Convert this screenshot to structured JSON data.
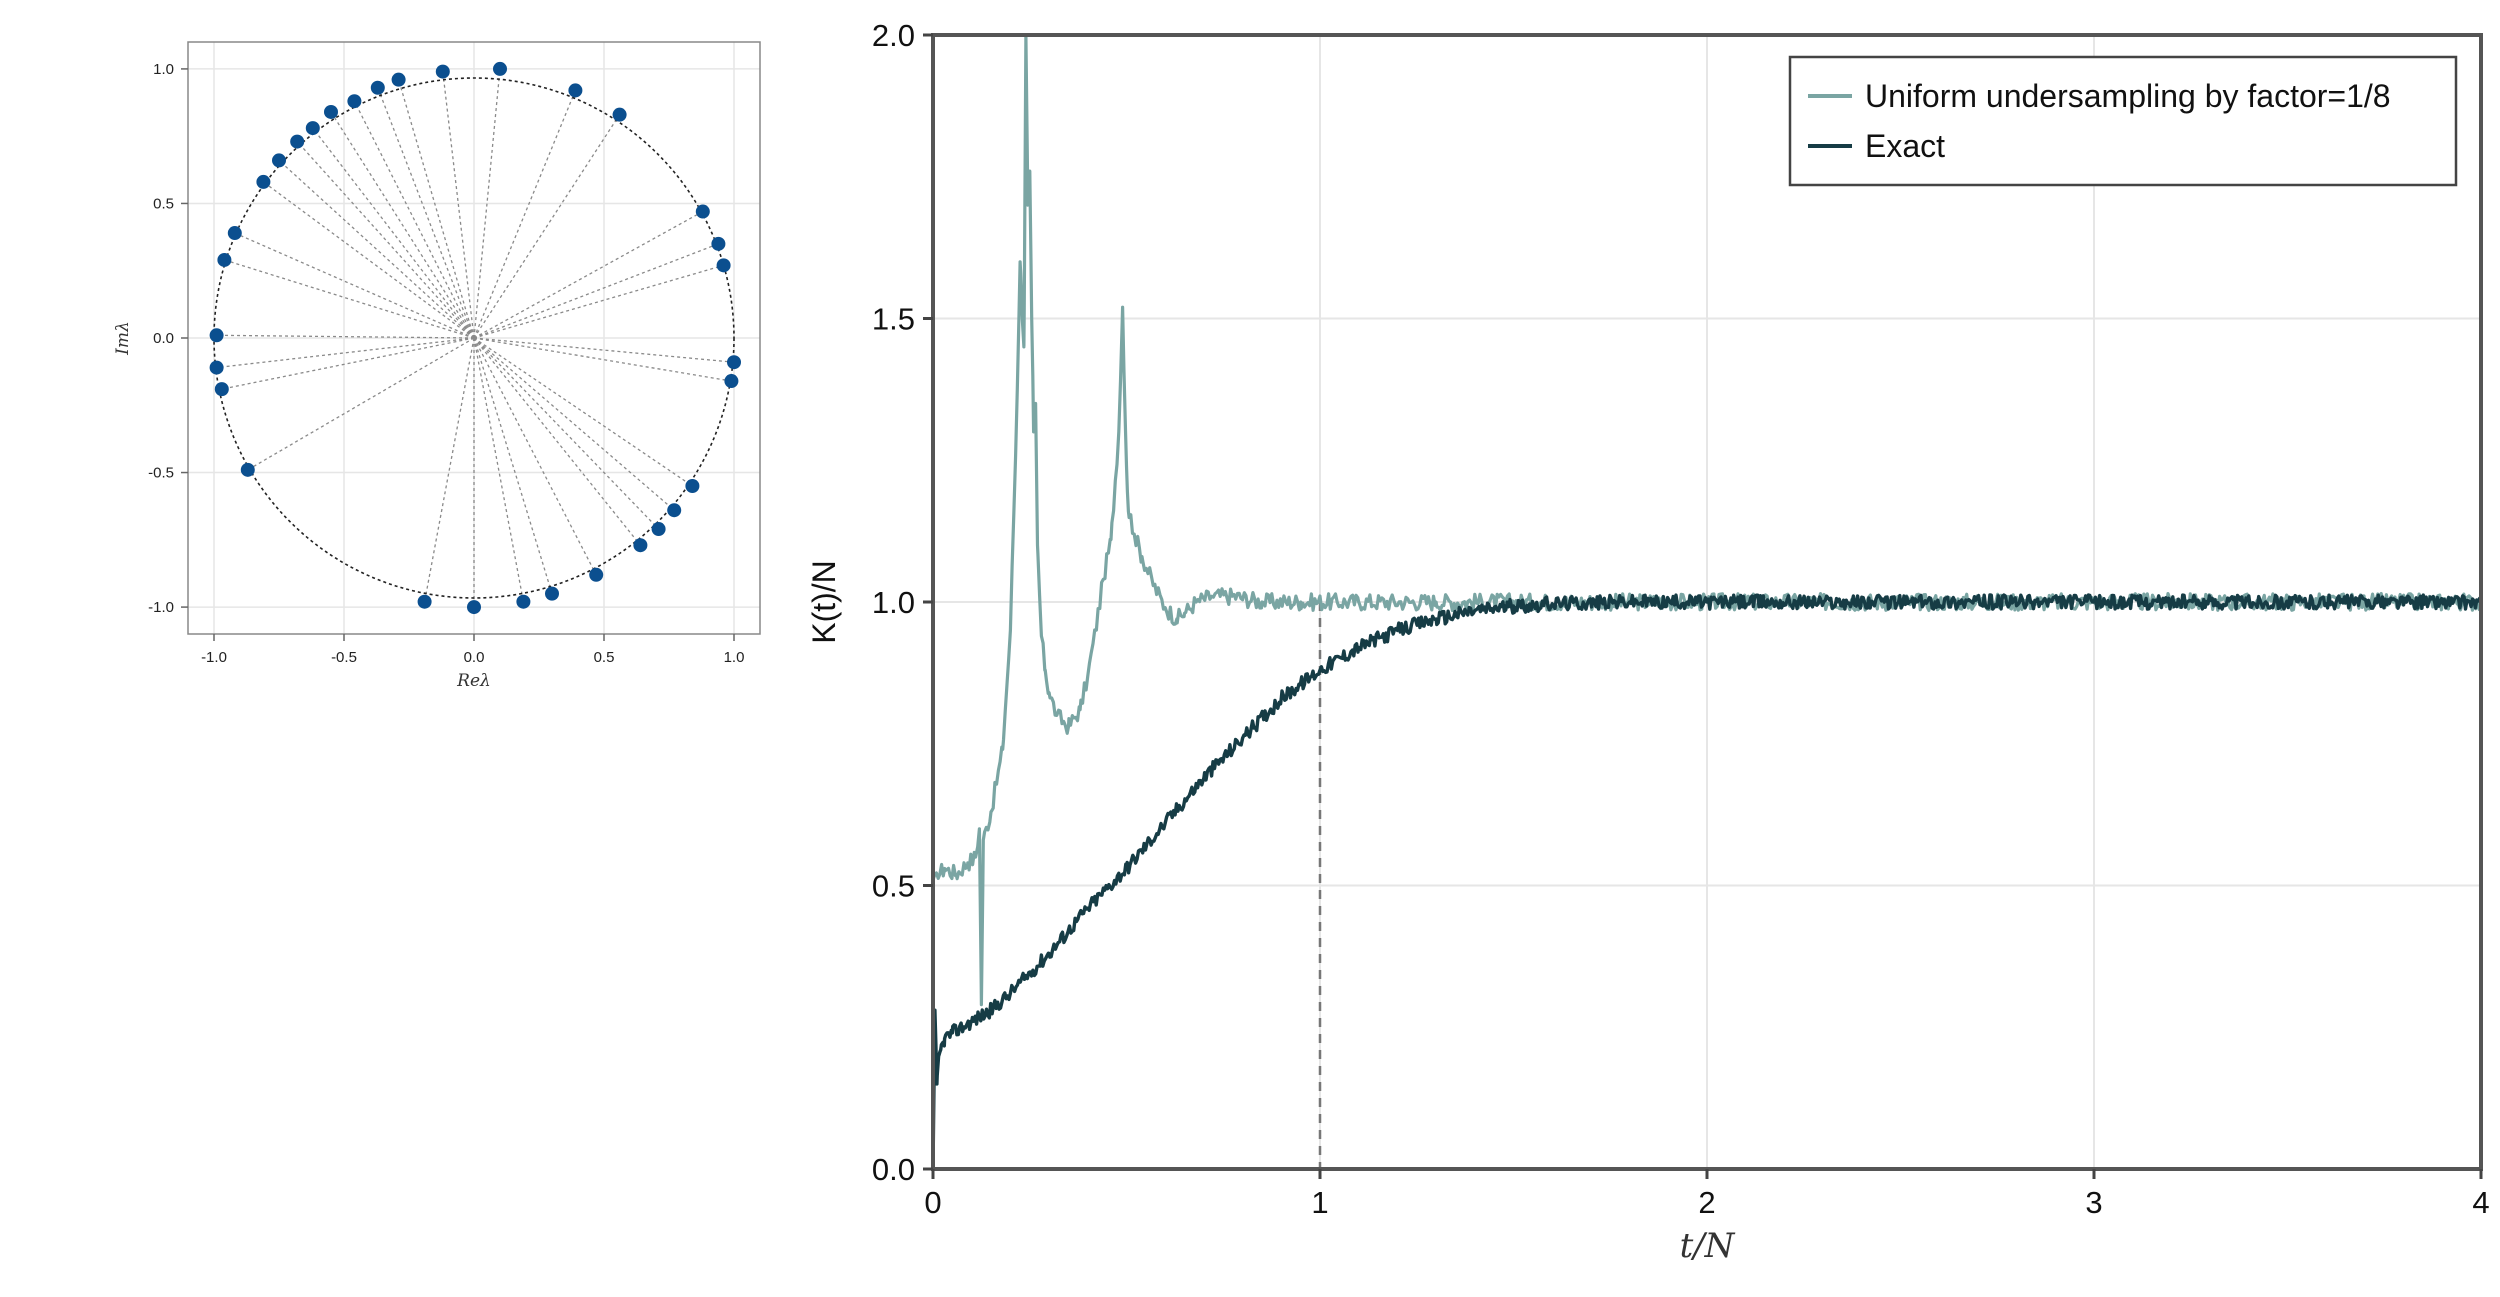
{
  "colors": {
    "eigen_point": "#0b4f8f",
    "spoke": "#8a8a8a",
    "unit_circle": "#222222",
    "undersampled": "#7aa5a3",
    "exact": "#163c45",
    "vline": "#777777",
    "grid": "#e6e6e6",
    "frame": "#555555"
  },
  "chart_data": [
    {
      "id": "eigenvalues",
      "type": "scatter",
      "title": "",
      "xlabel": "Reλ",
      "ylabel": "Imλ",
      "xlim": [
        -1.1,
        1.1
      ],
      "ylim": [
        -1.1,
        1.1
      ],
      "x_ticks": [
        -1.0,
        -0.5,
        0.0,
        0.5,
        1.0
      ],
      "x_tick_labels": [
        "-1.0",
        "-0.5",
        "0.0",
        "0.5",
        "1.0"
      ],
      "y_ticks": [
        -1.0,
        -0.5,
        0.0,
        0.5,
        1.0
      ],
      "y_tick_labels": [
        "-1.0",
        "-0.5",
        "0.0",
        "0.5",
        "1.0"
      ],
      "grid": true,
      "unit_circle": true,
      "spokes_from_origin": true,
      "points": [
        {
          "x": 0.1,
          "y": 1.0
        },
        {
          "x": 0.39,
          "y": 0.92
        },
        {
          "x": 0.56,
          "y": 0.83
        },
        {
          "x": -0.12,
          "y": 0.99
        },
        {
          "x": -0.29,
          "y": 0.96
        },
        {
          "x": -0.37,
          "y": 0.93
        },
        {
          "x": -0.46,
          "y": 0.88
        },
        {
          "x": -0.55,
          "y": 0.84
        },
        {
          "x": -0.62,
          "y": 0.78
        },
        {
          "x": -0.68,
          "y": 0.73
        },
        {
          "x": -0.75,
          "y": 0.66
        },
        {
          "x": -0.81,
          "y": 0.58
        },
        {
          "x": -0.92,
          "y": 0.39
        },
        {
          "x": -0.96,
          "y": 0.29
        },
        {
          "x": -0.99,
          "y": 0.01
        },
        {
          "x": -0.99,
          "y": -0.11
        },
        {
          "x": -0.97,
          "y": -0.19
        },
        {
          "x": -0.87,
          "y": -0.49
        },
        {
          "x": 0.88,
          "y": 0.47
        },
        {
          "x": 0.94,
          "y": 0.35
        },
        {
          "x": 0.96,
          "y": 0.27
        },
        {
          "x": 1.0,
          "y": -0.09
        },
        {
          "x": 0.99,
          "y": -0.16
        },
        {
          "x": 0.84,
          "y": -0.55
        },
        {
          "x": 0.77,
          "y": -0.64
        },
        {
          "x": 0.71,
          "y": -0.71
        },
        {
          "x": 0.64,
          "y": -0.77
        },
        {
          "x": 0.47,
          "y": -0.88
        },
        {
          "x": 0.3,
          "y": -0.95
        },
        {
          "x": 0.19,
          "y": -0.98
        },
        {
          "x": 0.0,
          "y": -1.0
        },
        {
          "x": -0.19,
          "y": -0.98
        }
      ]
    },
    {
      "id": "form-factor",
      "type": "line",
      "title": "",
      "xlabel": "t/N",
      "ylabel": "K(t)/N",
      "xlim": [
        0,
        4
      ],
      "ylim": [
        0,
        2
      ],
      "x_ticks": [
        0,
        1,
        2,
        3,
        4
      ],
      "x_tick_labels": [
        "0",
        "1",
        "2",
        "3",
        "4"
      ],
      "y_ticks": [
        0.0,
        0.5,
        1.0,
        1.5,
        2.0
      ],
      "y_tick_labels": [
        "0.0",
        "0.5",
        "1.0",
        "1.5",
        "2.0"
      ],
      "grid": true,
      "legend_position": "top-right",
      "reference_vline_x": 1,
      "series": [
        {
          "name": "Uniform undersampling by factor=1/8",
          "color_key": "undersampled",
          "x": [
            0.0,
            0.03,
            0.06,
            0.09,
            0.11,
            0.12,
            0.125,
            0.13,
            0.15,
            0.18,
            0.2,
            0.215,
            0.225,
            0.235,
            0.24,
            0.245,
            0.25,
            0.255,
            0.26,
            0.265,
            0.27,
            0.28,
            0.29,
            0.3,
            0.32,
            0.35,
            0.38,
            0.4,
            0.42,
            0.44,
            0.46,
            0.48,
            0.49,
            0.5,
            0.505,
            0.51,
            0.52,
            0.54,
            0.57,
            0.6,
            0.63,
            0.65,
            0.68,
            0.72,
            0.78,
            0.85,
            0.95,
            1.1,
            1.3,
            1.5,
            1.75,
            2.0,
            2.5,
            3.0,
            3.5,
            4.0
          ],
          "y": [
            0.51,
            0.53,
            0.52,
            0.54,
            0.55,
            0.6,
            0.29,
            0.58,
            0.63,
            0.74,
            0.95,
            1.3,
            1.6,
            1.45,
            2.05,
            1.7,
            1.76,
            1.5,
            1.3,
            1.35,
            1.1,
            0.94,
            0.88,
            0.84,
            0.8,
            0.78,
            0.81,
            0.87,
            0.95,
            1.04,
            1.11,
            1.3,
            1.52,
            1.24,
            1.16,
            1.15,
            1.12,
            1.08,
            1.03,
            0.99,
            0.97,
            0.98,
            1.0,
            1.01,
            1.01,
            1.0,
            1.0,
            1.0,
            1.0,
            1.0,
            1.0,
            1.0,
            1.0,
            1.0,
            1.0,
            1.0
          ]
        },
        {
          "name": "Exact",
          "color_key": "exact",
          "x": [
            0.0,
            0.005,
            0.01,
            0.015,
            0.02,
            0.03,
            0.05,
            0.1,
            0.15,
            0.2,
            0.3,
            0.4,
            0.5,
            0.6,
            0.7,
            0.8,
            0.9,
            1.0,
            1.1,
            1.2,
            1.3,
            1.4,
            1.5,
            1.6,
            1.8,
            2.0,
            2.5,
            3.0,
            3.5,
            4.0
          ],
          "y": [
            0.0,
            0.28,
            0.15,
            0.2,
            0.21,
            0.23,
            0.24,
            0.26,
            0.28,
            0.31,
            0.38,
            0.46,
            0.53,
            0.61,
            0.69,
            0.76,
            0.83,
            0.88,
            0.92,
            0.95,
            0.97,
            0.985,
            0.993,
            0.997,
            1.0,
            1.0,
            1.0,
            1.0,
            1.0,
            1.0
          ]
        }
      ]
    }
  ]
}
